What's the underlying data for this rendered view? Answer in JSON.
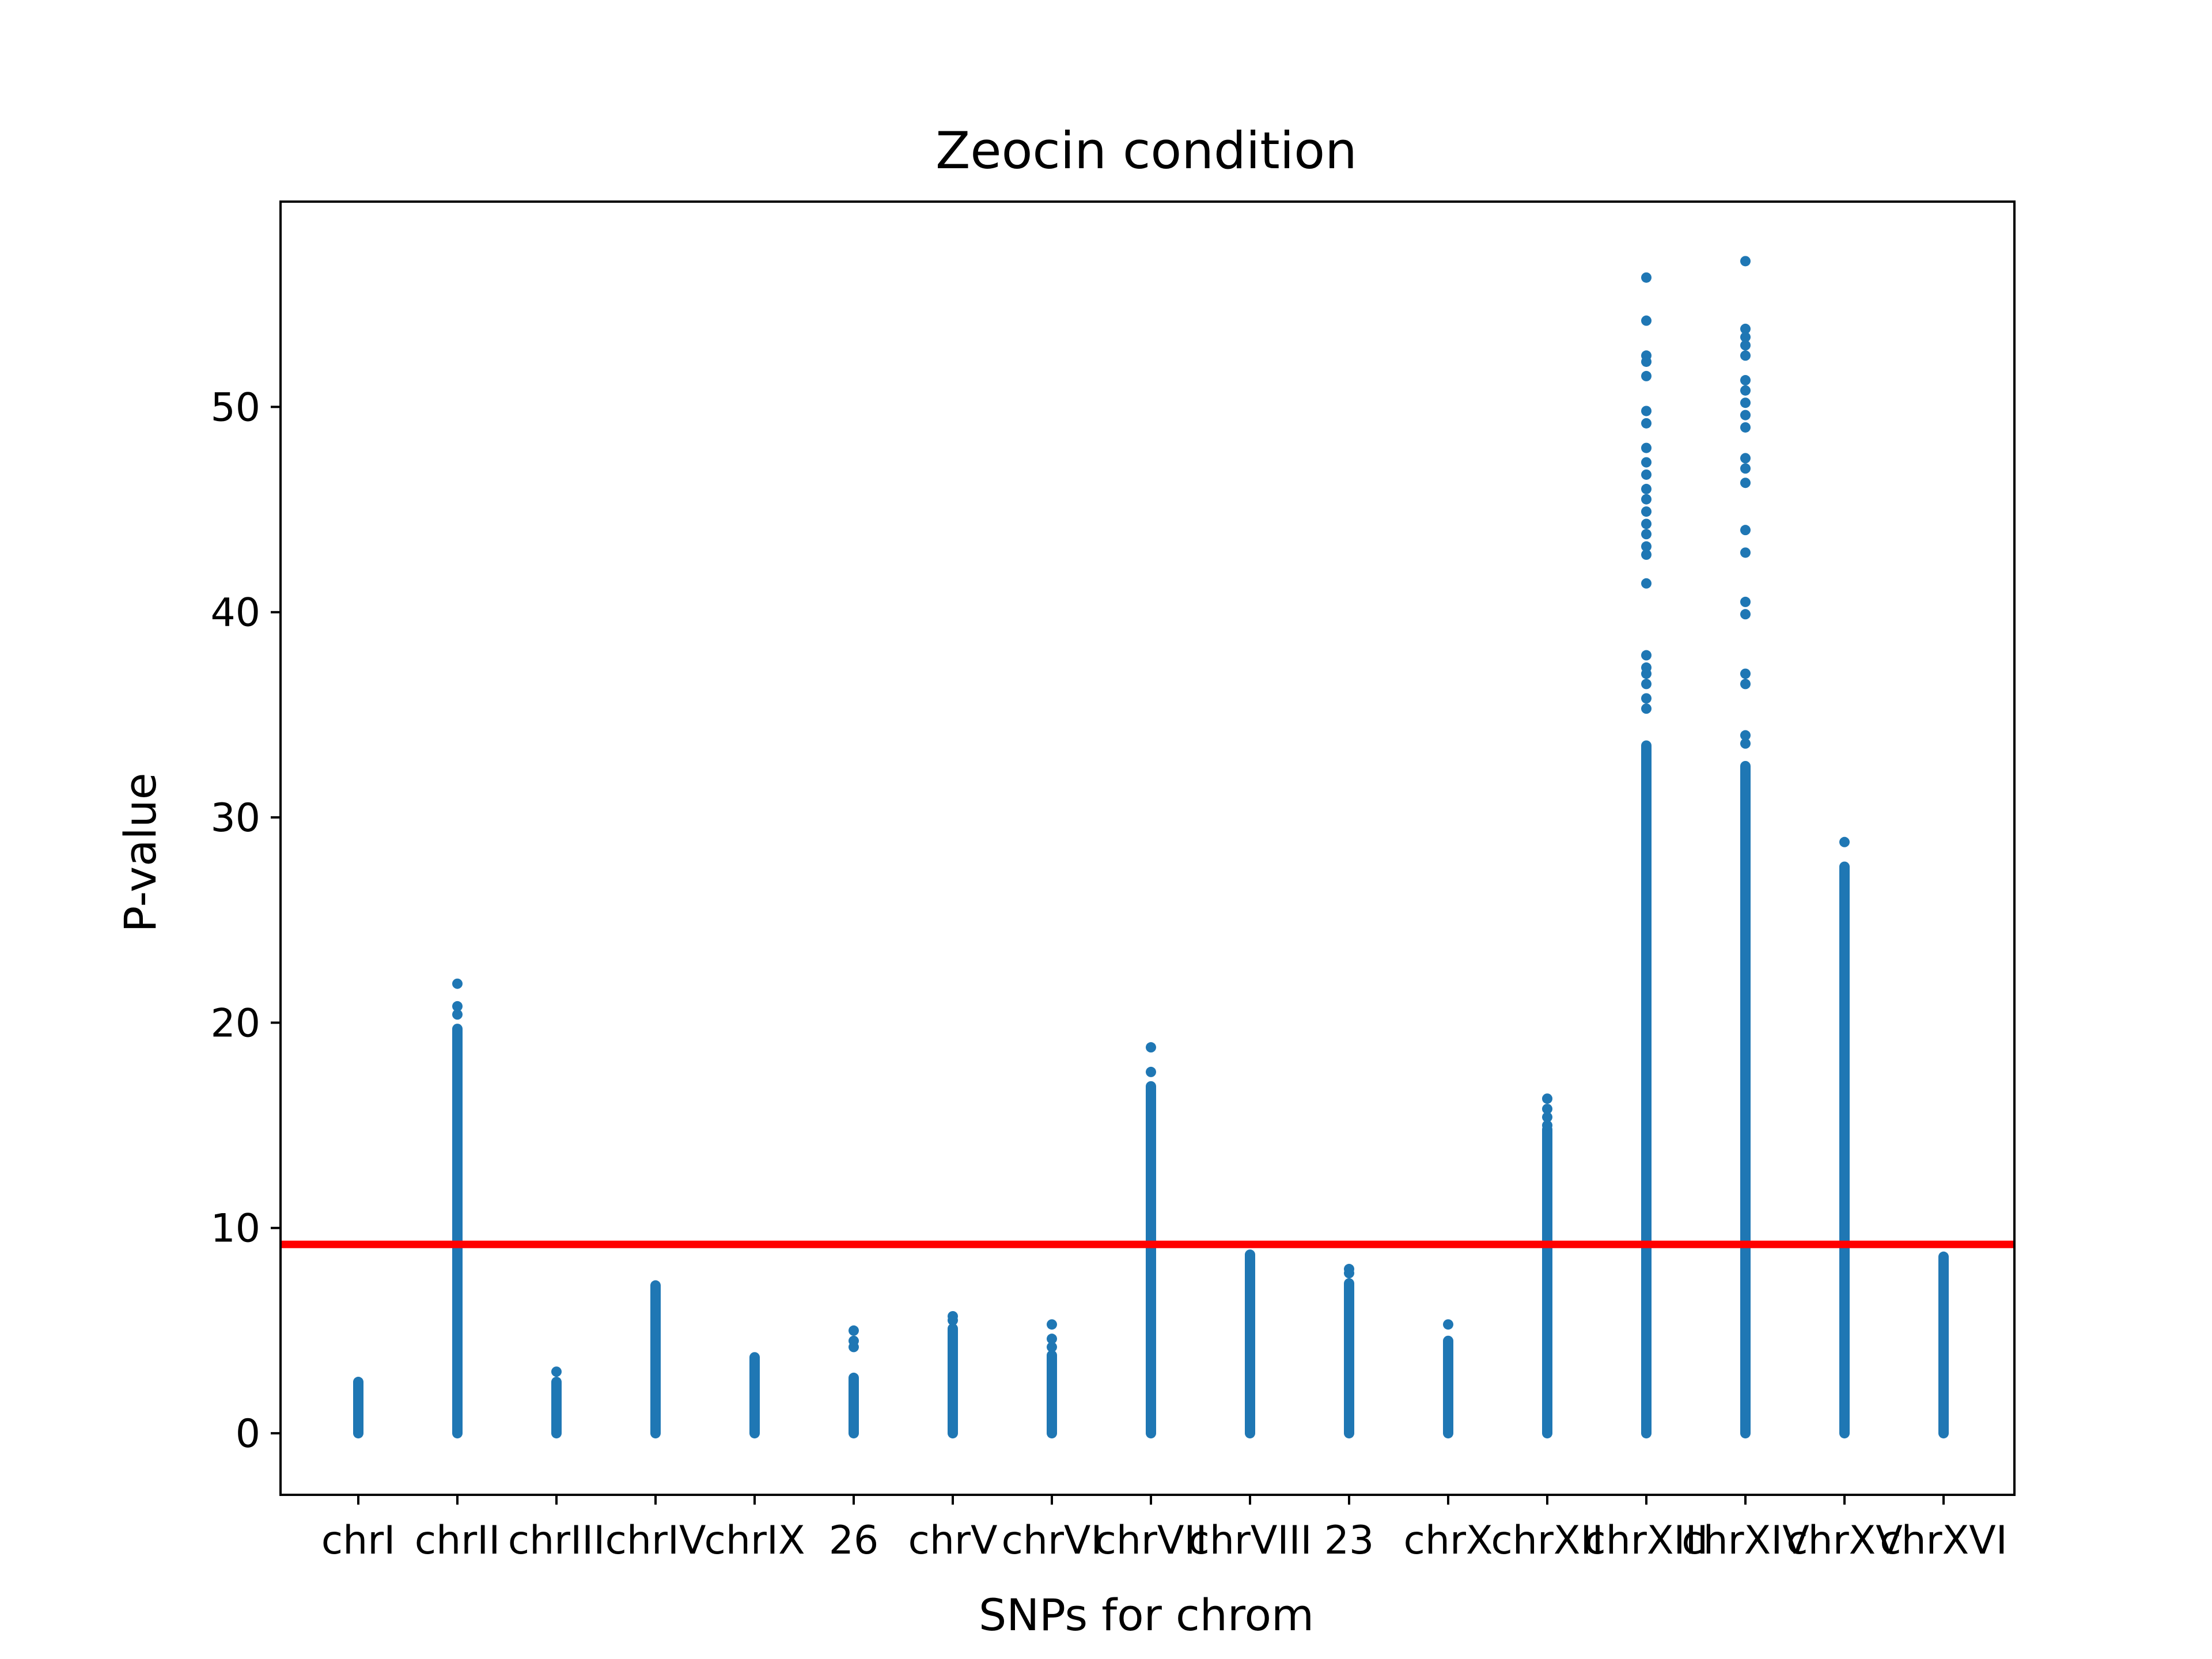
{
  "chart_data": {
    "type": "scatter",
    "title": "Zeocin condition",
    "xlabel": "SNPs for chrom",
    "ylabel": "P-value",
    "ylim": [
      -3,
      60
    ],
    "yticks": [
      0,
      10,
      20,
      30,
      40,
      50
    ],
    "grid": false,
    "legend": "none",
    "point_color": "#1f77b4",
    "threshold": {
      "value": 9.2,
      "color": "#ff0000"
    },
    "categories": [
      "chrI",
      "chrII",
      "chrIII",
      "chrIV",
      "chrIX",
      "26",
      "chrV",
      "chrVI",
      "chrVII",
      "chrVIII",
      "23",
      "chrX",
      "chrXII",
      "chrXIII",
      "chrXIV",
      "chrXV",
      "chrXVI"
    ],
    "series": [
      {
        "category": "chrI",
        "dense_max": 2.5,
        "outliers": []
      },
      {
        "category": "chrII",
        "dense_max": 19.7,
        "outliers": [
          20.4,
          20.8,
          21.9
        ]
      },
      {
        "category": "chrIII",
        "dense_max": 2.5,
        "outliers": [
          3.0
        ]
      },
      {
        "category": "chrIV",
        "dense_max": 7.2,
        "outliers": []
      },
      {
        "category": "chrIX",
        "dense_max": 3.7,
        "outliers": []
      },
      {
        "category": "26",
        "dense_max": 2.7,
        "outliers": [
          4.2,
          4.5,
          5.0
        ]
      },
      {
        "category": "chrV",
        "dense_max": 5.1,
        "outliers": [
          5.5,
          5.7
        ]
      },
      {
        "category": "chrVI",
        "dense_max": 3.8,
        "outliers": [
          4.2,
          4.6,
          5.3
        ]
      },
      {
        "category": "chrVII",
        "dense_max": 16.9,
        "outliers": [
          17.6,
          18.8
        ]
      },
      {
        "category": "chrVIII",
        "dense_max": 8.7,
        "outliers": []
      },
      {
        "category": "23",
        "dense_max": 7.3,
        "outliers": [
          7.8,
          8.0
        ]
      },
      {
        "category": "chrX",
        "dense_max": 4.5,
        "outliers": [
          5.3
        ]
      },
      {
        "category": "chrXII",
        "dense_max": 14.8,
        "outliers": [
          15.0,
          15.4,
          15.8,
          16.3
        ]
      },
      {
        "category": "chrXIII",
        "dense_max": 33.5,
        "outliers": [
          35.3,
          35.8,
          36.5,
          37.0,
          37.3,
          37.9,
          41.4,
          42.8,
          43.2,
          43.8,
          44.3,
          44.9,
          45.5,
          46.0,
          46.7,
          47.3,
          48.0,
          49.2,
          49.8,
          51.5,
          52.2,
          52.5,
          54.2,
          56.3
        ]
      },
      {
        "category": "chrXIV",
        "dense_max": 32.5,
        "outliers": [
          33.6,
          34.0,
          36.5,
          37.0,
          39.9,
          40.5,
          42.9,
          44.0,
          46.3,
          47.0,
          47.5,
          49.0,
          49.6,
          50.2,
          50.8,
          51.3,
          52.5,
          53.0,
          53.4,
          53.8,
          57.1
        ]
      },
      {
        "category": "chrXV",
        "dense_max": 27.6,
        "outliers": [
          28.8
        ]
      },
      {
        "category": "chrXVI",
        "dense_max": 8.6,
        "outliers": []
      }
    ]
  }
}
